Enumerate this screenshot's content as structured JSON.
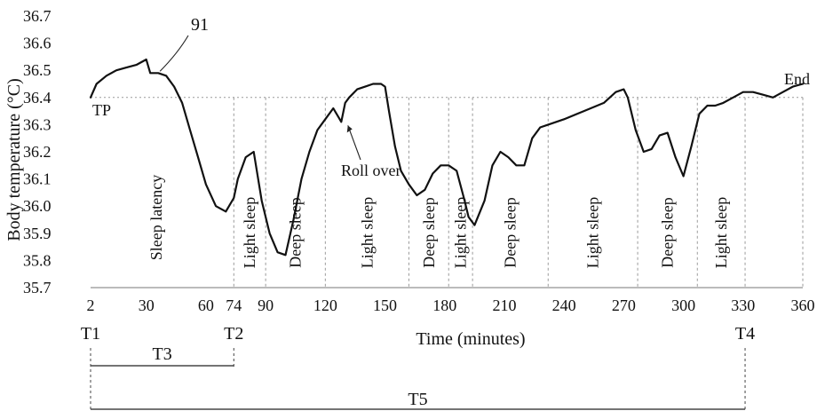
{
  "chart_data": {
    "type": "line",
    "xlabel": "Time (minutes)",
    "ylabel": "Body temperature (°C)",
    "ylim": [
      35.7,
      36.7
    ],
    "xlim": [
      2,
      360
    ],
    "x_ticks": [
      2,
      30,
      60,
      74,
      90,
      120,
      150,
      180,
      210,
      240,
      270,
      300,
      330,
      360
    ],
    "y_ticks": [
      35.7,
      35.8,
      35.9,
      36.0,
      36.1,
      36.2,
      36.3,
      36.4,
      36.5,
      36.6,
      36.7
    ],
    "grid": false,
    "tp_value": 36.4,
    "series": [
      {
        "x": [
          2,
          5,
          10,
          15,
          20,
          25,
          30,
          32,
          36,
          40,
          44,
          48,
          52,
          56,
          60,
          65,
          70,
          74,
          76,
          80,
          84,
          88,
          92,
          96,
          100,
          104,
          108,
          112,
          116,
          120,
          124,
          128,
          130,
          132,
          136,
          140,
          144,
          148,
          150,
          152,
          155,
          158,
          162,
          166,
          170,
          174,
          178,
          182,
          186,
          190,
          192,
          195,
          200,
          204,
          208,
          212,
          216,
          220,
          224,
          228,
          232,
          240,
          250,
          260,
          266,
          270,
          272,
          276,
          280,
          284,
          288,
          292,
          296,
          300,
          304,
          308,
          312,
          316,
          320,
          325,
          330,
          335,
          340,
          345,
          350,
          355,
          360
        ],
        "y": [
          36.4,
          36.45,
          36.48,
          36.5,
          36.51,
          36.52,
          36.54,
          36.49,
          36.49,
          36.48,
          36.44,
          36.38,
          36.28,
          36.18,
          36.08,
          36.0,
          35.98,
          36.03,
          36.1,
          36.18,
          36.2,
          36.02,
          35.9,
          35.83,
          35.82,
          35.95,
          36.1,
          36.2,
          36.28,
          36.32,
          36.36,
          36.31,
          36.38,
          36.4,
          36.43,
          36.44,
          36.45,
          36.45,
          36.44,
          36.35,
          36.22,
          36.13,
          36.08,
          36.04,
          36.06,
          36.12,
          36.15,
          36.15,
          36.13,
          36.02,
          35.96,
          35.93,
          36.02,
          36.15,
          36.2,
          36.18,
          36.15,
          36.15,
          36.25,
          36.29,
          36.3,
          36.32,
          36.35,
          36.38,
          36.42,
          36.43,
          36.4,
          36.28,
          36.2,
          36.21,
          36.26,
          36.27,
          36.18,
          36.11,
          36.22,
          36.34,
          36.37,
          36.37,
          36.38,
          36.4,
          36.42,
          36.42,
          36.41,
          36.4,
          36.42,
          36.44,
          36.45
        ]
      }
    ],
    "phases": [
      {
        "label": "Sleep latency",
        "start": 2,
        "end": 74
      },
      {
        "label": "Light sleep",
        "start": 74,
        "end": 90
      },
      {
        "label": "Deep sleep",
        "start": 90,
        "end": 120
      },
      {
        "label": "Light sleep",
        "start": 120,
        "end": 162
      },
      {
        "label": "Deep sleep",
        "start": 162,
        "end": 182
      },
      {
        "label": "Light sleep",
        "start": 182,
        "end": 194
      },
      {
        "label": "Deep sleep",
        "start": 194,
        "end": 232
      },
      {
        "label": "Light sleep",
        "start": 232,
        "end": 277
      },
      {
        "label": "Deep sleep",
        "start": 277,
        "end": 307
      },
      {
        "label": "Light sleep",
        "start": 307,
        "end": 331
      }
    ],
    "time_markers": [
      {
        "label": "T1",
        "x": 2
      },
      {
        "label": "T2",
        "x": 74
      },
      {
        "label": "T4",
        "x": 331
      }
    ],
    "spans": [
      {
        "label": "T3",
        "start": 2,
        "end": 74
      },
      {
        "label": "T5",
        "start": 2,
        "end": 331
      }
    ],
    "annotations": {
      "peak_ref": "91",
      "peak_ref_x": 36,
      "tp_label": "TP",
      "end_label": "End",
      "roll_over": "Roll over",
      "roll_over_x": 130
    }
  }
}
